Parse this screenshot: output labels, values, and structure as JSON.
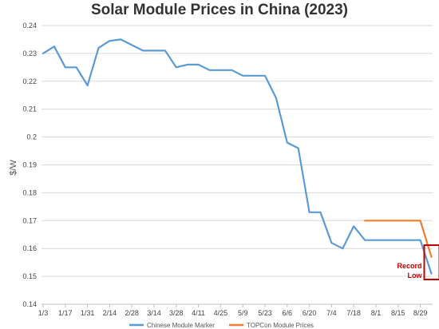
{
  "chart_data": {
    "type": "line",
    "title": "Solar Module Prices in China (2023)",
    "xlabel": "",
    "ylabel": "$/W",
    "ylim": [
      0.14,
      0.24
    ],
    "yticks": [
      "0.14",
      "0.15",
      "0.16",
      "0.17",
      "0.18",
      "0.19",
      "0.2",
      "0.21",
      "0.22",
      "0.23",
      "0.24"
    ],
    "categories": [
      "1/3",
      "1/10",
      "1/17",
      "1/24",
      "1/31",
      "2/7",
      "2/14",
      "2/21",
      "2/28",
      "3/7",
      "3/14",
      "3/21",
      "3/28",
      "4/4",
      "4/11",
      "4/18",
      "4/25",
      "5/2",
      "5/9",
      "5/16",
      "5/23",
      "5/30",
      "6/6",
      "6/13",
      "6/20",
      "6/27",
      "7/4",
      "7/11",
      "7/18",
      "7/25",
      "8/1",
      "8/8",
      "8/15",
      "8/22",
      "8/29",
      "9/5"
    ],
    "xtick_labels": [
      "1/3",
      "1/17",
      "1/31",
      "2/14",
      "2/28",
      "3/14",
      "3/28",
      "4/11",
      "4/25",
      "5/9",
      "5/23",
      "6/6",
      "6/20",
      "7/4",
      "7/18",
      "8/1",
      "8/15",
      "8/29"
    ],
    "grid": true,
    "legend": "bottom",
    "series": [
      {
        "name": "Chinese Module Marker",
        "color": "#5b9bd5",
        "values": [
          0.23,
          0.2325,
          0.225,
          0.225,
          0.2185,
          0.232,
          0.2345,
          0.235,
          0.233,
          0.231,
          0.231,
          0.231,
          0.225,
          0.226,
          0.226,
          0.224,
          0.224,
          0.224,
          0.222,
          0.222,
          0.222,
          0.214,
          0.198,
          0.196,
          0.173,
          0.173,
          0.162,
          0.16,
          0.168,
          0.163,
          0.163,
          0.163,
          0.163,
          0.163,
          0.163,
          0.151
        ]
      },
      {
        "name": "TOPCon Module Prices",
        "color": "#ed7d31",
        "values": [
          null,
          null,
          null,
          null,
          null,
          null,
          null,
          null,
          null,
          null,
          null,
          null,
          null,
          null,
          null,
          null,
          null,
          null,
          null,
          null,
          null,
          null,
          null,
          null,
          null,
          null,
          null,
          null,
          null,
          0.17,
          0.17,
          0.17,
          0.17,
          0.17,
          0.17,
          0.157
        ]
      }
    ],
    "annotations": [
      {
        "text_line1": "Record",
        "text_line2": "Low",
        "color": "#c00000"
      }
    ]
  }
}
